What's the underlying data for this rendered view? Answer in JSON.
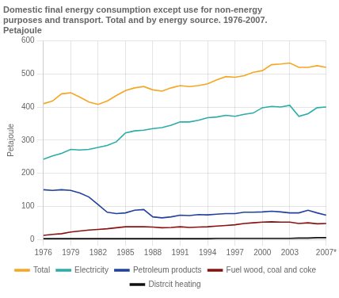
{
  "chart_data": {
    "type": "line",
    "title": "Domestic final energy consumption except use for non-energy\npurposes and transport. Total and by energy source. 1976-2007.\nPetajoule",
    "y_label": "Petajoule",
    "x": [
      1976,
      1977,
      1978,
      1979,
      1980,
      1981,
      1982,
      1983,
      1984,
      1985,
      1986,
      1987,
      1988,
      1989,
      1990,
      1991,
      1992,
      1993,
      1994,
      1995,
      1996,
      1997,
      1998,
      1999,
      2000,
      2001,
      2002,
      2003,
      2004,
      2005,
      2006,
      2007
    ],
    "xlim": [
      1976,
      2007
    ],
    "xticks": [
      1976,
      1979,
      1982,
      1985,
      1988,
      1991,
      1994,
      1997,
      2000,
      2003,
      {
        "value": 2007,
        "label": "2007*"
      }
    ],
    "ylim": [
      0,
      600
    ],
    "yticks": [
      0,
      100,
      200,
      300,
      400,
      500,
      600
    ],
    "grid": true,
    "legend": "bottom",
    "series": [
      {
        "name": "Total",
        "color": "#f5a623",
        "values": [
          410,
          418,
          440,
          443,
          430,
          415,
          408,
          418,
          435,
          450,
          458,
          462,
          452,
          448,
          458,
          465,
          462,
          465,
          470,
          482,
          492,
          490,
          495,
          505,
          510,
          528,
          530,
          533,
          520,
          520,
          525,
          520
        ]
      },
      {
        "name": "Electricity",
        "color": "#2aada8",
        "values": [
          242,
          252,
          260,
          272,
          270,
          272,
          278,
          284,
          295,
          322,
          328,
          330,
          335,
          338,
          345,
          355,
          355,
          360,
          368,
          370,
          375,
          372,
          378,
          382,
          398,
          402,
          400,
          405,
          372,
          380,
          398,
          400
        ]
      },
      {
        "name": "Petroleum products",
        "color": "#2240a0",
        "values": [
          150,
          148,
          150,
          148,
          140,
          128,
          105,
          82,
          78,
          80,
          88,
          90,
          68,
          65,
          68,
          73,
          72,
          75,
          74,
          76,
          78,
          78,
          82,
          82,
          83,
          85,
          83,
          80,
          80,
          88,
          80,
          73
        ]
      },
      {
        "name": "Fuel wood, coal and coke",
        "color": "#8b1010",
        "values": [
          12,
          15,
          17,
          22,
          25,
          28,
          30,
          32,
          35,
          38,
          38,
          38,
          37,
          35,
          36,
          38,
          36,
          37,
          38,
          40,
          42,
          44,
          48,
          50,
          52,
          53,
          52,
          52,
          48,
          50,
          47,
          48
        ]
      },
      {
        "name": "Distrcit heating",
        "color": "#111111",
        "values": [
          2,
          2,
          2,
          2,
          2,
          2,
          2,
          2,
          2,
          2,
          2,
          2,
          2,
          2,
          2,
          2,
          2,
          2,
          2,
          3,
          3,
          3,
          3,
          3,
          3,
          3,
          3,
          3,
          4,
          4,
          5,
          5
        ]
      }
    ]
  }
}
